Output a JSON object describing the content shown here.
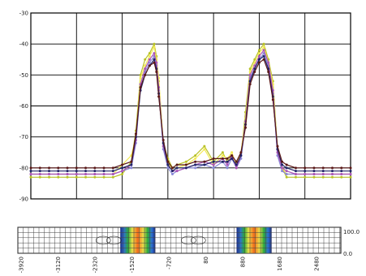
{
  "chart_data": [
    {
      "type": "line",
      "x": [
        -4000,
        -3800,
        -3600,
        -3400,
        -3200,
        -3000,
        -2800,
        -2600,
        -2400,
        -2200,
        -2000,
        -1800,
        -1700,
        -1600,
        -1500,
        -1400,
        -1300,
        -1250,
        -1200,
        -1100,
        -1000,
        -900,
        -800,
        -600,
        -400,
        -200,
        0,
        200,
        300,
        400,
        500,
        600,
        700,
        800,
        900,
        1000,
        1100,
        1200,
        1300,
        1400,
        1500,
        1600,
        1800,
        2000,
        2200,
        2400,
        2600,
        2800,
        3000
      ],
      "series": [
        {
          "color": "#b9c227",
          "values": [
            -83,
            -83,
            -83,
            -83,
            -83,
            -83,
            -83,
            -83,
            -83,
            -83,
            -82,
            -78,
            -68,
            -50,
            -45,
            -43,
            -40,
            -44,
            -52,
            -72,
            -77,
            -80,
            -79,
            -78,
            -76,
            -73,
            -78,
            -75,
            -78,
            -76,
            -80,
            -76,
            -62,
            -48,
            -45,
            -42,
            -40,
            -45,
            -52,
            -74,
            -80,
            -83,
            -83,
            -83,
            -83,
            -83,
            -83,
            -83,
            -83
          ]
        },
        {
          "color": "#f3ea55",
          "values": [
            -82,
            -82,
            -82,
            -82,
            -82,
            -82,
            -82,
            -82,
            -82,
            -82,
            -79,
            -76,
            -70,
            -51,
            -47,
            -44,
            -41,
            -45,
            -51,
            -73,
            -78,
            -81,
            -80,
            -79,
            -77,
            -74,
            -79,
            -76,
            -77,
            -75,
            -79,
            -75,
            -64,
            -49,
            -46,
            -43,
            -41,
            -46,
            -53,
            -75,
            -80,
            -82,
            -82,
            -82,
            -82,
            -82,
            -82,
            -82,
            -82
          ]
        },
        {
          "color": "#8a8ad8",
          "values": [
            -82,
            -82,
            -82,
            -82,
            -82,
            -82,
            -82,
            -82,
            -82,
            -82,
            -81,
            -80,
            -72,
            -54,
            -49,
            -46,
            -44,
            -47,
            -55,
            -74,
            -80,
            -82,
            -81,
            -80,
            -80,
            -79,
            -80,
            -78,
            -80,
            -77,
            -80,
            -77,
            -66,
            -51,
            -48,
            -45,
            -43,
            -47,
            -56,
            -76,
            -81,
            -82,
            -82,
            -82,
            -82,
            -82,
            -82,
            -82,
            -82
          ]
        },
        {
          "color": "#ac55b8",
          "values": [
            -82,
            -82,
            -82,
            -82,
            -82,
            -82,
            -82,
            -82,
            -82,
            -82,
            -81,
            -79,
            -71,
            -53,
            -48,
            -45,
            -43,
            -46,
            -54,
            -73,
            -79,
            -81,
            -81,
            -80,
            -79,
            -78,
            -79,
            -77,
            -79,
            -76,
            -80,
            -76,
            -65,
            -50,
            -47,
            -44,
            -42,
            -46,
            -55,
            -75,
            -80,
            -81,
            -82,
            -82,
            -82,
            -82,
            -82,
            -82,
            -82
          ]
        },
        {
          "color": "#1f2468",
          "values": [
            -81,
            -81,
            -81,
            -81,
            -81,
            -81,
            -81,
            -81,
            -81,
            -81,
            -80,
            -79,
            -70,
            -55,
            -50,
            -47,
            -45,
            -48,
            -56,
            -72,
            -79,
            -81,
            -80,
            -80,
            -79,
            -79,
            -78,
            -78,
            -78,
            -77,
            -79,
            -76,
            -66,
            -52,
            -48,
            -45,
            -44,
            -48,
            -57,
            -74,
            -79,
            -80,
            -81,
            -81,
            -81,
            -81,
            -81,
            -81,
            -81
          ]
        },
        {
          "color": "#5a1818",
          "values": [
            -80,
            -80,
            -80,
            -80,
            -80,
            -80,
            -80,
            -80,
            -80,
            -80,
            -79,
            -78,
            -69,
            -54,
            -50,
            -47,
            -46,
            -49,
            -57,
            -71,
            -78,
            -80,
            -79,
            -79,
            -78,
            -78,
            -77,
            -77,
            -77,
            -76,
            -78,
            -75,
            -67,
            -53,
            -49,
            -46,
            -45,
            -49,
            -58,
            -73,
            -78,
            -79,
            -80,
            -80,
            -80,
            -80,
            -80,
            -80,
            -80
          ]
        }
      ],
      "xlim": [
        -4000,
        3000
      ],
      "ylim": [
        -90,
        -30
      ],
      "yticks": [
        "-30",
        "-40",
        "-50",
        "-60",
        "-70",
        "-80",
        "-90"
      ],
      "xticks": [
        "-4000",
        "-3000",
        "-2000",
        "-1000",
        "0",
        "1000",
        "2000",
        "3000"
      ],
      "grid": true
    },
    {
      "type": "heatmap",
      "xlim": [
        -4000,
        3000
      ],
      "xticks": [
        "-3920",
        "-3120",
        "-2320",
        "-1520",
        "-720",
        "80",
        "880",
        "1680",
        "2480"
      ],
      "colorbar_ticks": [
        "100.0",
        "0.0"
      ],
      "hotspots": [
        {
          "x_center": -1400,
          "half_width": 380
        },
        {
          "x_center": 1120,
          "half_width": 380
        }
      ]
    }
  ]
}
